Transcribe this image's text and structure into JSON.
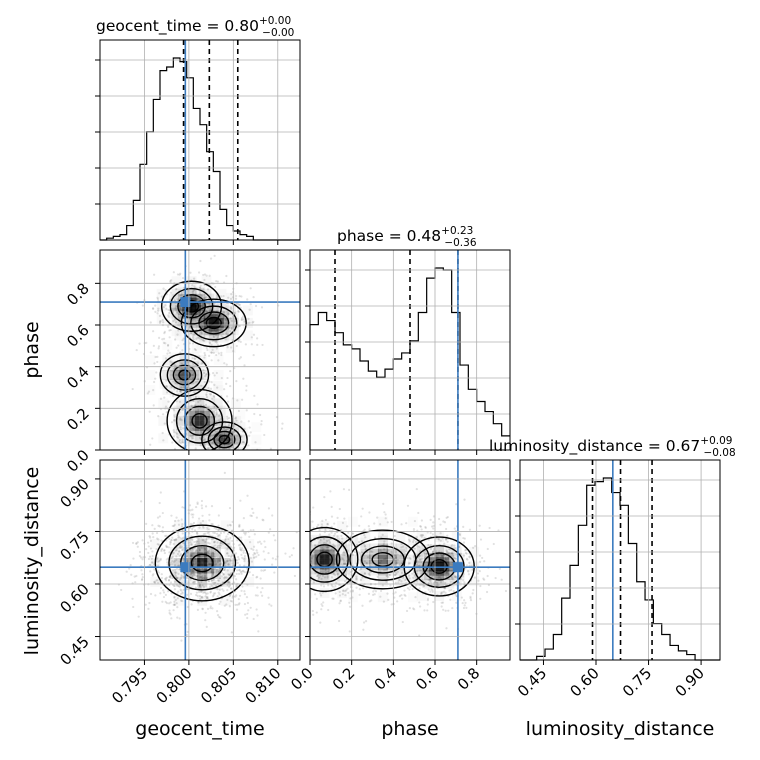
{
  "chart_data": {
    "type": "corner",
    "params": [
      "geocent_time",
      "phase",
      "luminosity_distance"
    ],
    "truths": {
      "geocent_time": 0.7996,
      "phase": 0.71,
      "luminosity_distance": 0.648
    },
    "ranges": {
      "geocent_time": [
        0.79,
        0.8125
      ],
      "phase": [
        0.0,
        0.96
      ],
      "luminosity_distance": [
        0.383,
        0.954
      ]
    },
    "titles": [
      {
        "param": "geocent_time",
        "text": "geocent_time = 0.80",
        "sup": "+0.00",
        "sub": "−0.00"
      },
      {
        "param": "phase",
        "text": "phase = 0.48",
        "sup": "+0.23",
        "sub": "−0.36"
      },
      {
        "param": "luminosity_distance",
        "text": "luminosity_distance = 0.67",
        "sup": "+0.09",
        "sub": "−0.08"
      }
    ],
    "axis_labels": {
      "x": [
        "geocent_time",
        "phase",
        "luminosity_distance"
      ],
      "y": [
        "phase",
        "luminosity_distance"
      ]
    },
    "ticks": {
      "geocent_time": [
        0.795,
        0.8,
        0.805,
        0.81
      ],
      "phase": [
        0.0,
        0.2,
        0.4,
        0.6,
        0.8
      ],
      "luminosity_distance": [
        0.45,
        0.6,
        0.75,
        0.9
      ]
    },
    "tick_labels": {
      "geocent_time": [
        "0.795",
        "0.800",
        "0.805",
        "0.810"
      ],
      "phase": [
        "0.0",
        "0.2",
        "0.4",
        "0.6",
        "0.8"
      ],
      "luminosity_distance": [
        "0.45",
        "0.60",
        "0.75",
        "0.90"
      ]
    },
    "quantiles": {
      "geocent_time": [
        0.7994,
        0.8023,
        0.8055
      ],
      "phase": [
        0.12,
        0.48,
        0.71
      ],
      "luminosity_distance": [
        0.59,
        0.67,
        0.76
      ]
    },
    "histograms": {
      "geocent_time": {
        "start": 0.79,
        "step": 0.00075,
        "counts": [
          0,
          1,
          2,
          3,
          8,
          22,
          42,
          60,
          78,
          94,
          96,
          101,
          99,
          90,
          73,
          64,
          49,
          38,
          17,
          8,
          5,
          3,
          2,
          0,
          0,
          0,
          0,
          0,
          0,
          0
        ]
      },
      "phase": {
        "start": 0.0,
        "step": 0.04,
        "counts": [
          0.62,
          0.68,
          0.64,
          0.58,
          0.52,
          0.5,
          0.44,
          0.39,
          0.36,
          0.4,
          0.45,
          0.48,
          0.54,
          0.68,
          0.85,
          0.9,
          0.89,
          0.68,
          0.42,
          0.3,
          0.24,
          0.19,
          0.13,
          0.07
        ]
      },
      "luminosity_distance": {
        "start": 0.383,
        "step": 0.0238,
        "counts": [
          0,
          0,
          2,
          6,
          14,
          34,
          52,
          74,
          96,
          98,
          100,
          92,
          85,
          64,
          43,
          33,
          20,
          14,
          8,
          5,
          3,
          0,
          0,
          0
        ]
      }
    },
    "contours_2d": [
      {
        "x": "geocent_time",
        "y": "phase",
        "shape": "two-lobe S-shaped density: main mode near (0.8005, 0.65) and (0.8025, 0.62), secondary mode near (0.8015, 0.10)"
      },
      {
        "x": "geocent_time",
        "y": "luminosity_distance",
        "shape": "single mode near (0.8015, 0.66)"
      },
      {
        "x": "phase",
        "y": "luminosity_distance",
        "shape": "elongated band across phase at ~0.66, with modes near phase 0.05 and 0.62"
      }
    ],
    "colors": {
      "truth": "#3b7bbf",
      "hist": "#000000",
      "grid": "#b0b0b0",
      "density": "#000000"
    }
  }
}
